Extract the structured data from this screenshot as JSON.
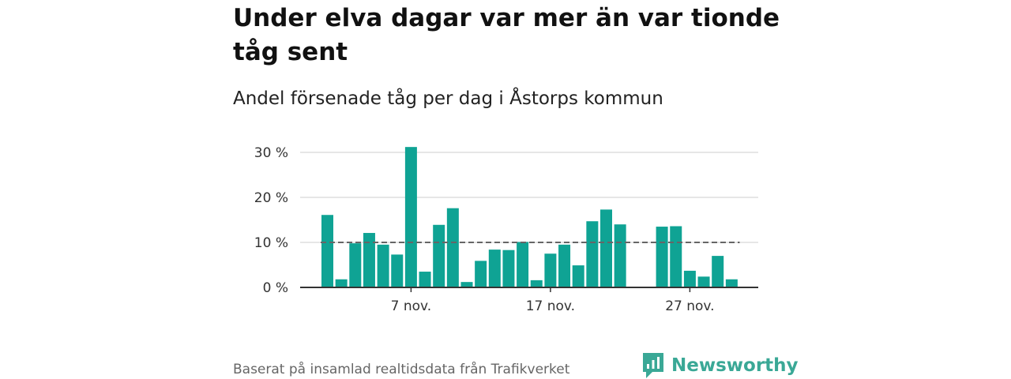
{
  "title": "Under elva dagar var mer än var tionde tåg sent",
  "subtitle": "Andel försenade tåg per dag i Åstorps kommun",
  "source": "Baserat på insamlad realtidsdata från Trafikverket",
  "brand": {
    "name": "Newsworthy",
    "color": "#3aa896",
    "icon": "newsworthy-logo-icon"
  },
  "colors": {
    "bar": "#0fa394",
    "grid": "#dddddd",
    "reference_line": "#666666",
    "axis": "#333333"
  },
  "chart_data": {
    "type": "bar",
    "title": "",
    "xlabel": "",
    "ylabel": "",
    "ylim": [
      0,
      30
    ],
    "y_ticks": [
      0,
      10,
      20,
      30
    ],
    "y_tick_labels": [
      "0 %",
      "10 %",
      "20 %",
      "30 %"
    ],
    "x_tick_labels": [
      {
        "date": "2021-11-07",
        "label": "7 nov."
      },
      {
        "date": "2021-11-17",
        "label": "17 nov."
      },
      {
        "date": "2021-11-27",
        "label": "27 nov."
      }
    ],
    "grid": true,
    "reference_line": {
      "value": 10,
      "style": "dashed"
    },
    "x": [
      "2021-11-01",
      "2021-11-02",
      "2021-11-03",
      "2021-11-04",
      "2021-11-05",
      "2021-11-06",
      "2021-11-07",
      "2021-11-08",
      "2021-11-09",
      "2021-11-10",
      "2021-11-11",
      "2021-11-12",
      "2021-11-13",
      "2021-11-14",
      "2021-11-15",
      "2021-11-16",
      "2021-11-17",
      "2021-11-18",
      "2021-11-19",
      "2021-11-20",
      "2021-11-21",
      "2021-11-22",
      "2021-11-23",
      "2021-11-24",
      "2021-11-25",
      "2021-11-26",
      "2021-11-27",
      "2021-11-28",
      "2021-11-29",
      "2021-11-30"
    ],
    "values": [
      16.1,
      1.8,
      9.8,
      12.1,
      9.5,
      7.3,
      31.2,
      3.5,
      13.9,
      17.6,
      1.2,
      5.9,
      8.4,
      8.3,
      10.1,
      1.6,
      7.5,
      9.5,
      4.9,
      14.7,
      17.3,
      14.0,
      null,
      null,
      13.5,
      13.6,
      3.7,
      2.4,
      7.0,
      1.8
    ]
  }
}
